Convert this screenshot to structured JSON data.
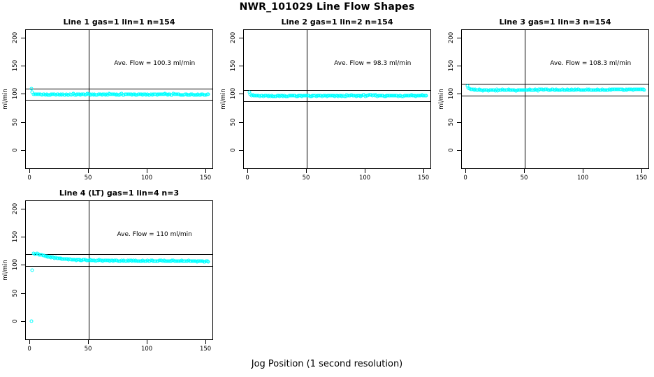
{
  "page": {
    "title": "NWR_101029  Line Flow Shapes",
    "xlabel": "Jog Position (1 second resolution)",
    "ylabel": "ml/min"
  },
  "colors": {
    "point": "#00ffff",
    "axis": "#000000",
    "background": "#ffffff"
  },
  "axes": {
    "x_tick_labels": [
      "0",
      "50",
      "100",
      "150"
    ],
    "y_tick_labels": [
      "0",
      "50",
      "100",
      "150",
      "200"
    ],
    "x_tick_values": [
      0,
      50,
      100,
      150
    ],
    "y_tick_values": [
      0,
      50,
      100,
      150,
      200
    ],
    "xlim": [
      0,
      155
    ],
    "ylim": [
      0,
      200
    ]
  },
  "chart_data": [
    {
      "type": "scatter",
      "panel": 1,
      "title": "Line 1 gas=1 lin=1 n=154",
      "n": 154,
      "ave_flow": 100.3,
      "ave_flow_label": "Ave. Flow =  100.3  ml/min",
      "ylabel": "ml/min",
      "xlim": [
        0,
        155
      ],
      "ylim": [
        0,
        200
      ],
      "ref_lines": {
        "upper": 110.3,
        "lower": 90.3,
        "vertical_x": 50
      },
      "x_range": [
        1,
        152
      ],
      "profile": [
        [
          1,
          110
        ],
        [
          2,
          103.5
        ],
        [
          3,
          101
        ],
        [
          5,
          100.2
        ],
        [
          10,
          99.8
        ],
        [
          20,
          99.9
        ],
        [
          40,
          100.1
        ],
        [
          60,
          100
        ],
        [
          80,
          100.2
        ],
        [
          100,
          100
        ],
        [
          120,
          100.1
        ],
        [
          152,
          100
        ]
      ],
      "outliers": [],
      "jitter": 1.1
    },
    {
      "type": "scatter",
      "panel": 2,
      "title": "Line 2 gas=1 lin=2 n=154",
      "n": 154,
      "ave_flow": 98.3,
      "ave_flow_label": "Ave. Flow =  98.3  ml/min",
      "ylabel": "ml/min",
      "xlim": [
        0,
        155
      ],
      "ylim": [
        0,
        200
      ],
      "ref_lines": {
        "upper": 108.1,
        "lower": 88.5,
        "vertical_x": 50
      },
      "x_range": [
        1,
        152
      ],
      "profile": [
        [
          1,
          105
        ],
        [
          2,
          100.5
        ],
        [
          3,
          98.5
        ],
        [
          6,
          97.6
        ],
        [
          15,
          97.3
        ],
        [
          40,
          97.5
        ],
        [
          80,
          97.7
        ],
        [
          120,
          97.9
        ],
        [
          152,
          98.2
        ]
      ],
      "outliers": [],
      "jitter": 1.0
    },
    {
      "type": "scatter",
      "panel": 3,
      "title": "Line 3 gas=1 lin=3 n=154",
      "n": 154,
      "ave_flow": 108.3,
      "ave_flow_label": "Ave. Flow =  108.3  ml/min",
      "ylabel": "ml/min",
      "xlim": [
        0,
        155
      ],
      "ylim": [
        0,
        200
      ],
      "ref_lines": {
        "upper": 119.1,
        "lower": 97.5,
        "vertical_x": 50
      },
      "x_range": [
        1,
        152
      ],
      "profile": [
        [
          1,
          115
        ],
        [
          2,
          112
        ],
        [
          3,
          109.5
        ],
        [
          6,
          108.3
        ],
        [
          15,
          108
        ],
        [
          40,
          108
        ],
        [
          80,
          108.2
        ],
        [
          120,
          108.3
        ],
        [
          152,
          108.5
        ]
      ],
      "outliers": [],
      "jitter": 0.9
    },
    {
      "type": "scatter",
      "panel": 4,
      "title": "Line 4 (LT) gas=1 lin=4 n=3",
      "n": 3,
      "ave_flow": 110,
      "ave_flow_label": "Ave. Flow =  110  ml/min",
      "ylabel": "ml/min",
      "xlim": [
        0,
        155
      ],
      "ylim": [
        0,
        200
      ],
      "ref_lines": {
        "upper": 121,
        "lower": 99,
        "vertical_x": 50
      },
      "x_range": [
        3,
        152
      ],
      "profile": [
        [
          3,
          122
        ],
        [
          5,
          121
        ],
        [
          8,
          119.5
        ],
        [
          12,
          117.5
        ],
        [
          18,
          114.5
        ],
        [
          25,
          112.5
        ],
        [
          35,
          110.5
        ],
        [
          50,
          109.5
        ],
        [
          70,
          108.8
        ],
        [
          90,
          108.5
        ],
        [
          110,
          108.2
        ],
        [
          130,
          108.2
        ],
        [
          152,
          107.2
        ]
      ],
      "outliers": [
        [
          1,
          1
        ],
        [
          2,
          92
        ]
      ],
      "jitter": 0.8
    }
  ]
}
